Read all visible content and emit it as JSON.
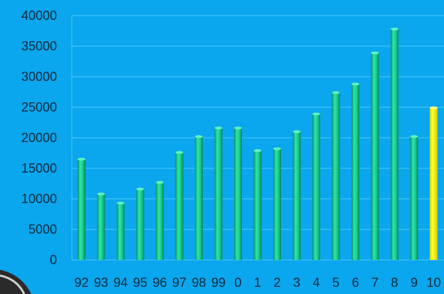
{
  "chart_data": {
    "type": "bar",
    "title": "",
    "xlabel": "",
    "ylabel": "",
    "ylim": [
      0,
      40000
    ],
    "yticks": [
      0,
      5000,
      10000,
      15000,
      20000,
      25000,
      30000,
      35000,
      40000
    ],
    "grid": true,
    "categories": [
      "92",
      "93",
      "94",
      "95",
      "96",
      "97",
      "98",
      "99",
      "0",
      "1",
      "2",
      "3",
      "4",
      "5",
      "6",
      "7",
      "8",
      "9",
      "10"
    ],
    "values": [
      16500,
      10800,
      9300,
      11600,
      12700,
      17600,
      20200,
      21600,
      21600,
      17900,
      18200,
      21000,
      23900,
      27400,
      28800,
      33900,
      37800,
      20200,
      24900
    ],
    "highlight_index": 18,
    "colors": {
      "background": "#0aa6ee",
      "bar": "#14c98b",
      "bar_highlight": "#ffff00",
      "grid": "#4ecbf5",
      "text": "#0a2a3a"
    }
  }
}
